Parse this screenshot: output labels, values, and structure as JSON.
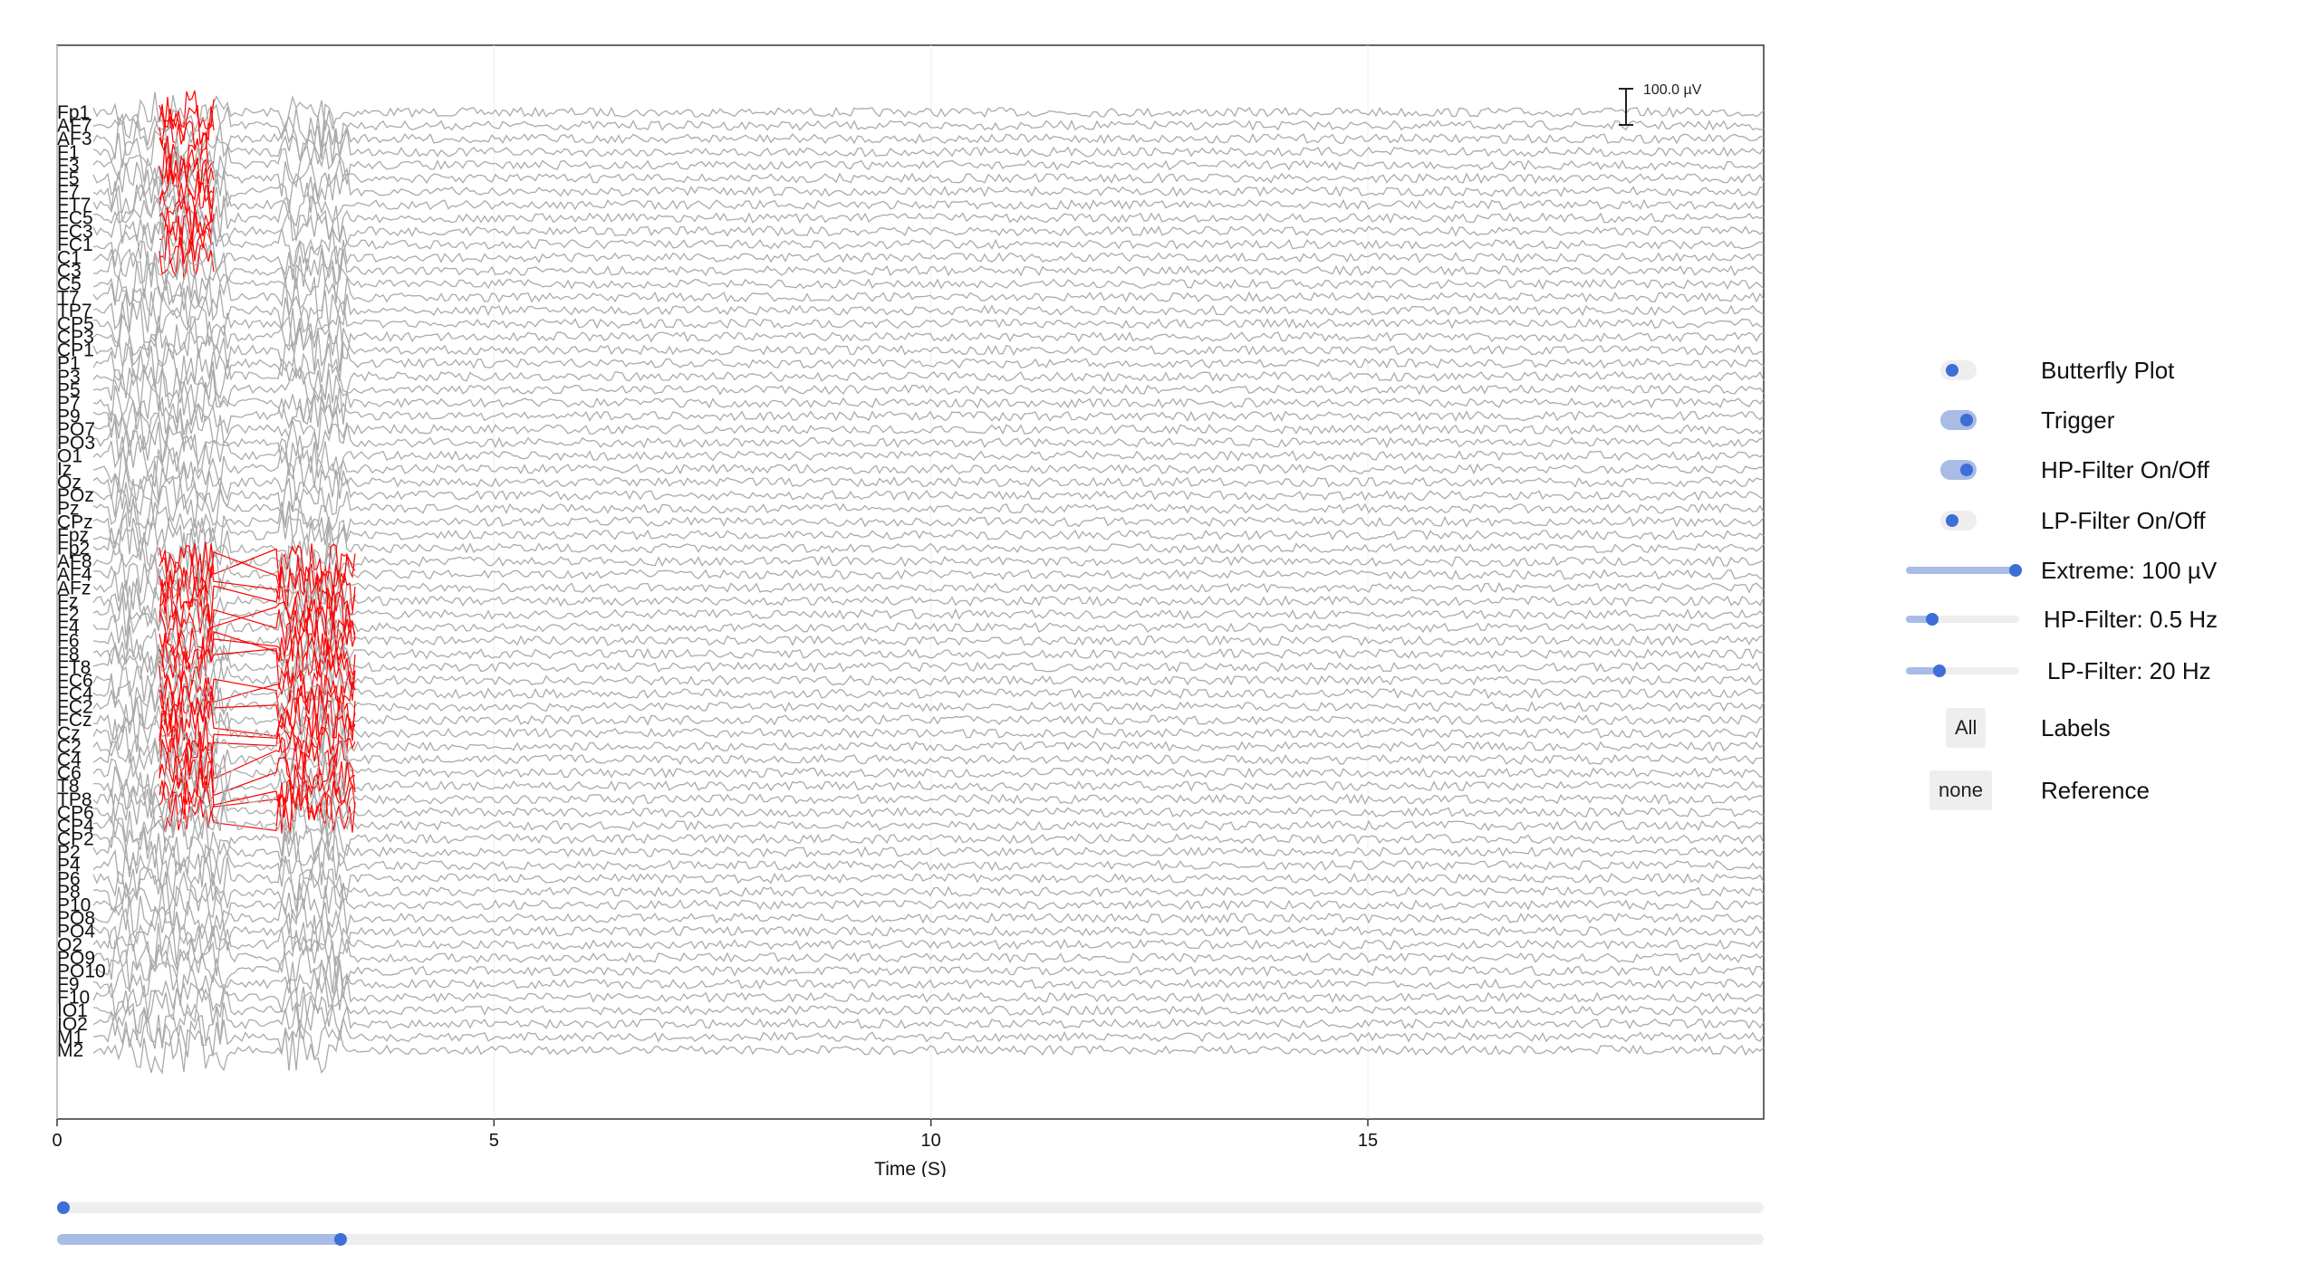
{
  "plot": {
    "xlabel": "Time (S)",
    "xlim": [
      0,
      19.53
    ],
    "xticks": [
      0,
      5,
      10,
      15
    ],
    "grid": true,
    "scale_bar": "100.0 µV",
    "channels": [
      "Fp1",
      "AF7",
      "AF3",
      "F1",
      "F3",
      "F5",
      "F7",
      "FT7",
      "FC5",
      "FC3",
      "FC1",
      "C1",
      "C3",
      "C5",
      "T7",
      "TP7",
      "CP5",
      "CP3",
      "CP1",
      "P1",
      "P3",
      "P5",
      "P7",
      "P9",
      "PO7",
      "PO3",
      "O1",
      "Iz",
      "Oz",
      "POz",
      "Pz",
      "CPz",
      "Fpz",
      "Fp2",
      "AF8",
      "AF4",
      "AFz",
      "Fz",
      "F2",
      "F4",
      "F6",
      "F8",
      "FT8",
      "FC6",
      "FC4",
      "FC2",
      "FCz",
      "Cz",
      "C2",
      "C4",
      "C6",
      "T8",
      "TP8",
      "CP6",
      "CP4",
      "CP2",
      "P2",
      "P4",
      "P6",
      "P8",
      "P10",
      "PO8",
      "PO4",
      "O2",
      "PO9",
      "PO10",
      "F9",
      "F10",
      "IO1",
      "IO2",
      "M1",
      "M2"
    ]
  },
  "controls": {
    "butterfly": {
      "label": "Butterfly Plot",
      "checked": false
    },
    "trigger": {
      "label": "Trigger",
      "checked": true
    },
    "hp_on": {
      "label": "HP-Filter On/Off",
      "checked": true
    },
    "lp_on": {
      "label": "LP-Filter On/Off",
      "checked": false
    },
    "extreme": {
      "label": "Extreme: 100 µV"
    },
    "hp": {
      "label": "HP-Filter: 0.5 Hz"
    },
    "lp": {
      "label": "LP-Filter: 20 Hz"
    },
    "labels": {
      "label": "Labels",
      "button": "All"
    },
    "reference": {
      "label": "Reference",
      "button": "none"
    }
  }
}
